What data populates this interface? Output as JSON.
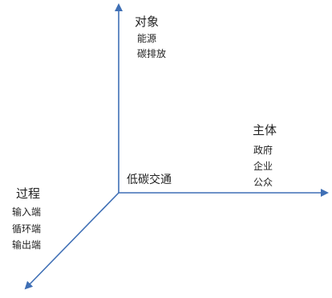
{
  "axes": {
    "vertical": {
      "title": "对象",
      "items": [
        "能源",
        "碳排放"
      ]
    },
    "horizontal": {
      "title": "主体",
      "items": [
        "政府",
        "企业",
        "公众"
      ]
    },
    "diagonal": {
      "title": "过程",
      "items": [
        "输入端",
        "循环端",
        "输出端"
      ]
    }
  },
  "center_label": "低碳交通",
  "colors": {
    "axis": "#3f6fb5",
    "text": "#222222"
  }
}
